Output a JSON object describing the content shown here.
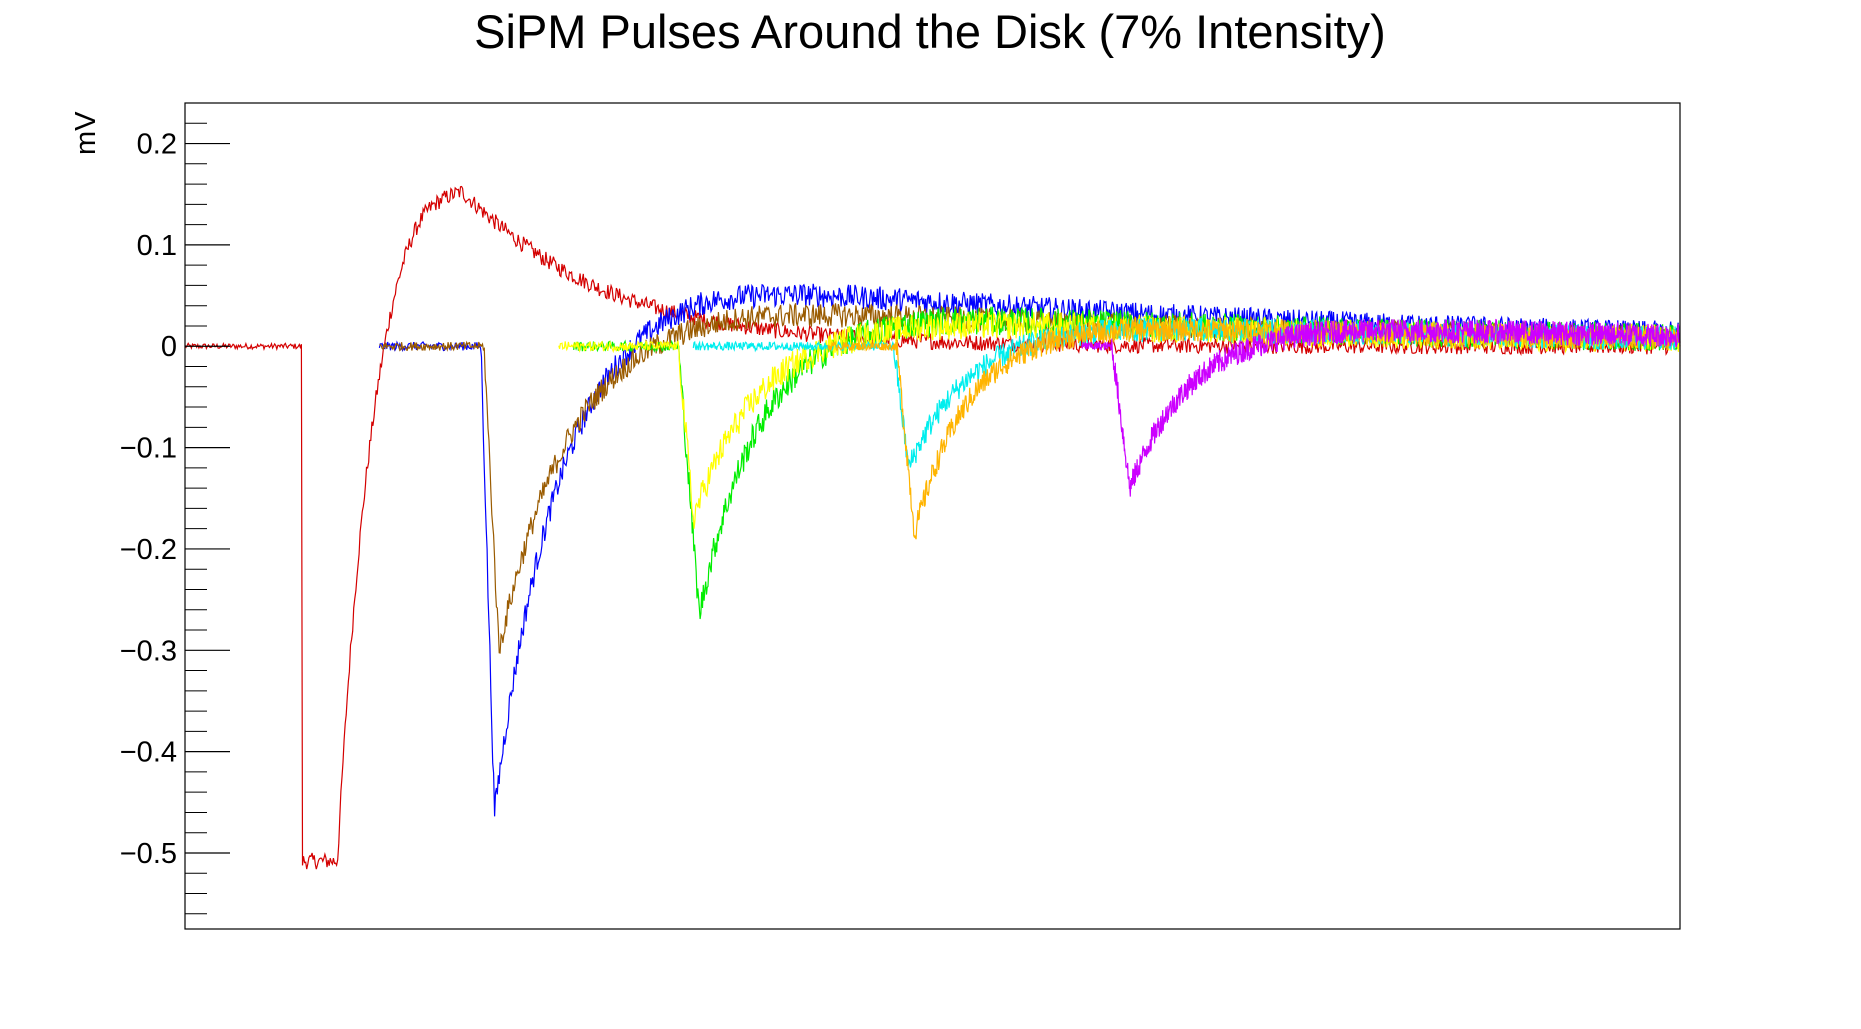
{
  "chart_data": {
    "type": "line",
    "title": "SiPM Pulses Around the Disk (7% Intensity)",
    "ylabel": "mV",
    "xlabel": "",
    "x_tick_labels_visible": false,
    "x_domain": [
      0,
      1
    ],
    "ylim": [
      -0.575,
      0.24
    ],
    "y_ticks": [
      {
        "value": 0.2,
        "label": "0.2"
      },
      {
        "value": 0.1,
        "label": "0.1"
      },
      {
        "value": 0,
        "label": "0"
      },
      {
        "value": -0.1,
        "label": "−0.1"
      },
      {
        "value": -0.2,
        "label": "−0.2"
      },
      {
        "value": -0.3,
        "label": "−0.3"
      },
      {
        "value": -0.4,
        "label": "−0.4"
      },
      {
        "value": -0.5,
        "label": "−0.5"
      }
    ],
    "y_minor_step": 0.02,
    "grid": false,
    "legend": "none",
    "series": [
      {
        "color": "#d40000",
        "start": 0.0,
        "onset": 0.078,
        "saturate": -0.508,
        "sat_end": 0.102,
        "overshoot": 0.16,
        "overshoot_peak_x": 0.185,
        "tau": 0.06,
        "noise": 0.008
      },
      {
        "color": "#0000ff",
        "start": 0.13,
        "onset": 0.198,
        "peak_x": 0.207,
        "peak": -0.46,
        "tau": 0.045,
        "overshoot": 0.065,
        "overshoot_peak_x": 0.35,
        "noise": 0.012
      },
      {
        "color": "#9a5b00",
        "start": 0.13,
        "onset": 0.2,
        "peak_x": 0.21,
        "peak": -0.3,
        "tau": 0.05,
        "overshoot": 0.04,
        "overshoot_peak_x": 0.37,
        "noise": 0.012
      },
      {
        "color": "#00ee00",
        "start": 0.26,
        "onset": 0.33,
        "peak_x": 0.344,
        "peak": -0.265,
        "tau": 0.04,
        "overshoot": 0.03,
        "overshoot_peak_x": 0.5,
        "noise": 0.014
      },
      {
        "color": "#ffff00",
        "start": 0.25,
        "onset": 0.33,
        "peak_x": 0.34,
        "peak": -0.17,
        "tau": 0.045,
        "overshoot": 0.025,
        "overshoot_peak_x": 0.5,
        "noise": 0.014
      },
      {
        "color": "#00eeee",
        "start": 0.34,
        "onset": 0.474,
        "peak_x": 0.484,
        "peak": -0.12,
        "tau": 0.04,
        "overshoot": 0.02,
        "overshoot_peak_x": 0.62,
        "noise": 0.012
      },
      {
        "color": "#ffb400",
        "start": 0.43,
        "onset": 0.476,
        "peak_x": 0.488,
        "peak": -0.185,
        "tau": 0.035,
        "overshoot": 0.02,
        "overshoot_peak_x": 0.62,
        "noise": 0.012
      },
      {
        "color": "#cc00ff",
        "start": 0.6,
        "onset": 0.62,
        "peak_x": 0.632,
        "peak": -0.14,
        "tau": 0.04,
        "overshoot": 0.02,
        "overshoot_peak_x": 0.75,
        "noise": 0.012
      }
    ]
  }
}
